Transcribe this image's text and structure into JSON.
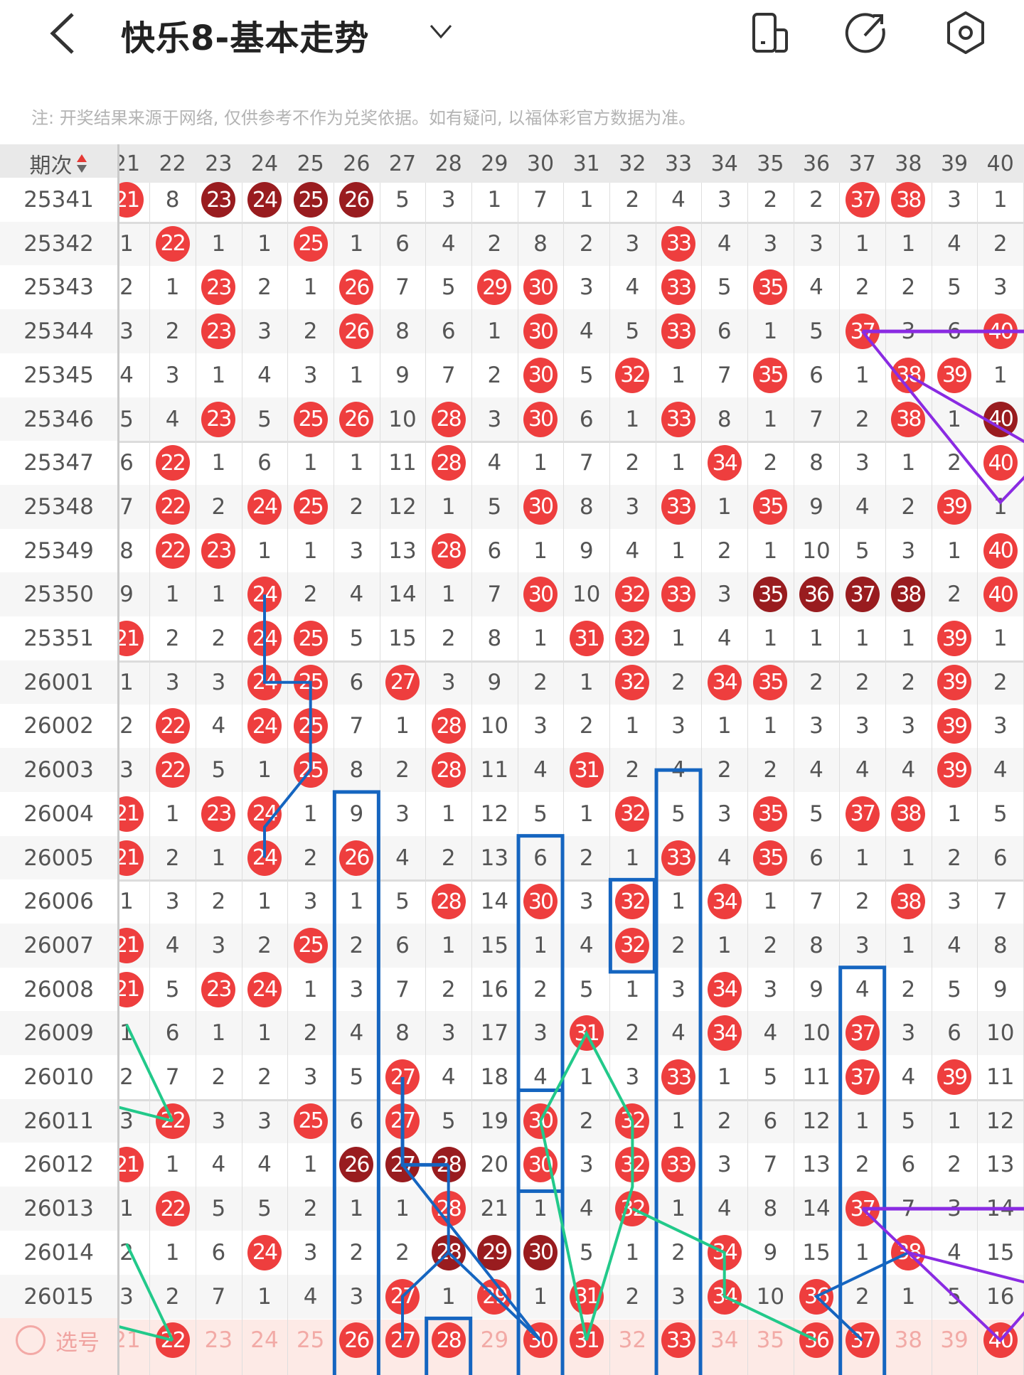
{
  "header": {
    "title": "快乐8-基本走势",
    "icons": [
      "back-chevron-icon",
      "dropdown-chevron-icon",
      "phone-layout-icon",
      "share-icon",
      "settings-icon"
    ]
  },
  "note": "注: 开奖结果来源于网络, 仅供参考不作为兑奖依据。如有疑问, 以福体彩官方数据为准。",
  "table": {
    "period_header": "期次",
    "columns": [
      "21",
      "22",
      "23",
      "24",
      "25",
      "26",
      "27",
      "28",
      "29",
      "30",
      "31",
      "32",
      "33",
      "34",
      "35",
      "36",
      "37",
      "38",
      "39",
      "40"
    ],
    "legend": {
      "r": "hit (red ball)",
      "d": "consecutive hit (dark ball)"
    },
    "rows": [
      {
        "period": "25341",
        "cells": [
          "r",
          8,
          "d",
          "d",
          "d",
          "d",
          5,
          3,
          1,
          7,
          1,
          2,
          4,
          3,
          2,
          2,
          "r",
          "r",
          3,
          1
        ]
      },
      {
        "period": "25342",
        "cells": [
          1,
          "r",
          1,
          1,
          "r",
          1,
          6,
          4,
          2,
          8,
          2,
          3,
          "r",
          4,
          3,
          3,
          1,
          1,
          4,
          2
        ]
      },
      {
        "period": "25343",
        "cells": [
          2,
          1,
          "r",
          2,
          1,
          "r",
          7,
          5,
          "r",
          "r",
          3,
          4,
          "r",
          5,
          "r",
          4,
          2,
          2,
          5,
          3
        ]
      },
      {
        "period": "25344",
        "cells": [
          3,
          2,
          "r",
          3,
          2,
          "r",
          8,
          6,
          1,
          "r",
          4,
          5,
          "r",
          6,
          1,
          5,
          "r",
          3,
          6,
          "r"
        ]
      },
      {
        "period": "25345",
        "cells": [
          4,
          3,
          1,
          4,
          3,
          1,
          9,
          7,
          2,
          "r",
          5,
          "r",
          1,
          7,
          "r",
          6,
          1,
          "r",
          "r",
          1
        ]
      },
      {
        "period": "25346",
        "cells": [
          5,
          4,
          "r",
          5,
          "r",
          "r",
          10,
          "r",
          3,
          "r",
          6,
          1,
          "r",
          8,
          1,
          7,
          2,
          "r",
          1,
          "d"
        ]
      },
      {
        "period": "25347",
        "cells": [
          6,
          "r",
          1,
          6,
          1,
          1,
          11,
          "r",
          4,
          1,
          7,
          2,
          1,
          "r",
          2,
          8,
          3,
          1,
          2,
          "r"
        ]
      },
      {
        "period": "25348",
        "cells": [
          7,
          "r",
          2,
          "r",
          "r",
          2,
          12,
          1,
          5,
          "r",
          8,
          3,
          "r",
          1,
          "r",
          9,
          4,
          2,
          "r",
          1
        ]
      },
      {
        "period": "25349",
        "cells": [
          8,
          "r",
          "r",
          1,
          1,
          3,
          13,
          "r",
          6,
          1,
          9,
          4,
          1,
          2,
          1,
          10,
          5,
          3,
          1,
          "r"
        ]
      },
      {
        "period": "25350",
        "cells": [
          9,
          1,
          1,
          "r",
          2,
          4,
          14,
          1,
          7,
          "r",
          10,
          "r",
          "r",
          3,
          "d",
          "d",
          "d",
          "d",
          2,
          "r"
        ]
      },
      {
        "period": "25351",
        "cells": [
          "r",
          2,
          2,
          "r",
          "r",
          5,
          15,
          2,
          8,
          1,
          "r",
          "r",
          1,
          4,
          1,
          1,
          1,
          1,
          "r",
          1
        ]
      },
      {
        "period": "26001",
        "cells": [
          1,
          3,
          3,
          "r",
          "r",
          6,
          "r",
          3,
          9,
          2,
          1,
          "r",
          2,
          "r",
          "r",
          2,
          2,
          2,
          "r",
          2
        ]
      },
      {
        "period": "26002",
        "cells": [
          2,
          "r",
          4,
          "r",
          "r",
          7,
          1,
          "r",
          10,
          3,
          2,
          1,
          3,
          1,
          1,
          3,
          3,
          3,
          "r",
          3
        ]
      },
      {
        "period": "26003",
        "cells": [
          3,
          "r",
          5,
          1,
          "r",
          8,
          2,
          "r",
          11,
          4,
          "r",
          2,
          4,
          2,
          2,
          4,
          4,
          4,
          "r",
          4
        ]
      },
      {
        "period": "26004",
        "cells": [
          "r",
          1,
          "r",
          "r",
          1,
          9,
          3,
          1,
          12,
          5,
          1,
          "r",
          5,
          3,
          "r",
          5,
          "r",
          "r",
          1,
          5
        ]
      },
      {
        "period": "26005",
        "cells": [
          "r",
          2,
          1,
          "r",
          2,
          "r",
          4,
          2,
          13,
          6,
          2,
          1,
          "r",
          4,
          "r",
          6,
          1,
          1,
          2,
          6
        ]
      },
      {
        "period": "26006",
        "cells": [
          1,
          3,
          2,
          1,
          3,
          1,
          5,
          "r",
          14,
          "r",
          3,
          "r",
          1,
          "r",
          1,
          7,
          2,
          "r",
          3,
          7
        ]
      },
      {
        "period": "26007",
        "cells": [
          "r",
          4,
          3,
          2,
          "r",
          2,
          6,
          1,
          15,
          1,
          4,
          "r",
          2,
          1,
          2,
          8,
          3,
          1,
          4,
          8
        ]
      },
      {
        "period": "26008",
        "cells": [
          "r",
          5,
          "r",
          "r",
          1,
          3,
          7,
          2,
          16,
          2,
          5,
          1,
          3,
          "r",
          3,
          9,
          4,
          2,
          5,
          9
        ]
      },
      {
        "period": "26009",
        "cells": [
          1,
          6,
          1,
          1,
          2,
          4,
          8,
          3,
          17,
          3,
          "r",
          2,
          4,
          "r",
          4,
          10,
          "r",
          3,
          6,
          10
        ]
      },
      {
        "period": "26010",
        "cells": [
          2,
          7,
          2,
          2,
          3,
          5,
          "r",
          4,
          18,
          4,
          1,
          3,
          "r",
          1,
          5,
          11,
          "r",
          4,
          "r",
          11
        ]
      },
      {
        "period": "26011",
        "cells": [
          3,
          "r",
          3,
          3,
          "r",
          6,
          "r",
          5,
          19,
          "r",
          2,
          "r",
          1,
          2,
          6,
          12,
          1,
          5,
          1,
          12
        ]
      },
      {
        "period": "26012",
        "cells": [
          "r",
          1,
          4,
          4,
          1,
          "d",
          "d",
          "d",
          20,
          "r",
          3,
          "r",
          "r",
          3,
          7,
          13,
          2,
          6,
          2,
          13
        ]
      },
      {
        "period": "26013",
        "cells": [
          1,
          "r",
          5,
          5,
          2,
          1,
          1,
          "r",
          21,
          1,
          4,
          "r",
          1,
          4,
          8,
          14,
          "r",
          7,
          3,
          14
        ]
      },
      {
        "period": "26014",
        "cells": [
          2,
          1,
          6,
          "r",
          3,
          2,
          2,
          "d",
          "d",
          "d",
          5,
          1,
          2,
          "r",
          9,
          15,
          1,
          "r",
          4,
          15
        ]
      },
      {
        "period": "26015",
        "cells": [
          3,
          2,
          7,
          1,
          4,
          3,
          "r",
          1,
          "r",
          1,
          "r",
          2,
          3,
          "r",
          10,
          "r",
          2,
          1,
          5,
          16
        ]
      }
    ],
    "select_row": {
      "label": "选号",
      "selected": [
        "22",
        "26",
        "27",
        "28",
        "30",
        "31",
        "33",
        "36",
        "37",
        "40"
      ]
    }
  },
  "colors": {
    "ball_red": "#ee3e3e",
    "ball_dark": "#991c1f",
    "line_blue": "#1565c0",
    "line_green": "#22c98a",
    "line_purple": "#8a2be2",
    "select_bg": "#fdeae6"
  }
}
